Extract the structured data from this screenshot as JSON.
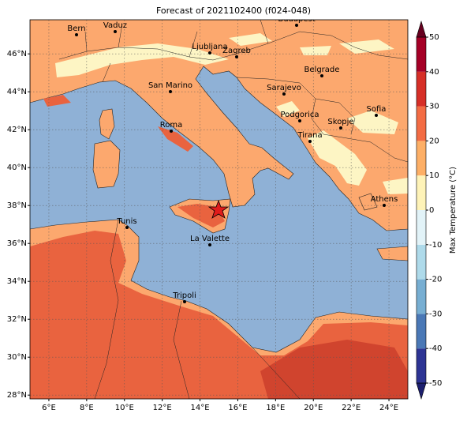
{
  "title": "Forecast of 2021102400 (f024-048)",
  "map": {
    "xlim": [
      5,
      25
    ],
    "ylim": [
      27.8,
      47.8
    ],
    "xticks": [
      {
        "value": 6,
        "label": "6°E"
      },
      {
        "value": 8,
        "label": "8°E"
      },
      {
        "value": 10,
        "label": "10°E"
      },
      {
        "value": 12,
        "label": "12°E"
      },
      {
        "value": 14,
        "label": "14°E"
      },
      {
        "value": 16,
        "label": "16°E"
      },
      {
        "value": 18,
        "label": "18°E"
      },
      {
        "value": 20,
        "label": "20°E"
      },
      {
        "value": 22,
        "label": "22°E"
      },
      {
        "value": 24,
        "label": "24°E"
      }
    ],
    "yticks": [
      {
        "value": 28,
        "label": "28°N"
      },
      {
        "value": 30,
        "label": "30°N"
      },
      {
        "value": 32,
        "label": "32°N"
      },
      {
        "value": 34,
        "label": "34°N"
      },
      {
        "value": 36,
        "label": "36°N"
      },
      {
        "value": 38,
        "label": "38°N"
      },
      {
        "value": 40,
        "label": "40°N"
      },
      {
        "value": 42,
        "label": "42°N"
      },
      {
        "value": 44,
        "label": "44°N"
      },
      {
        "value": 46,
        "label": "46°N"
      }
    ],
    "cities": [
      "Bern",
      "Vaduz",
      "Budapest",
      "Ljubljana",
      "Zagreb",
      "Belgrade",
      "San Marino",
      "Sarajevo",
      "Sofia",
      "Podgorica",
      "Skopje",
      "Roma",
      "Tirana",
      "Athens",
      "Tunis",
      "La Valette",
      "Tripoli"
    ]
  },
  "colorbar": {
    "label": "Max Temperature (°C)",
    "lim": [
      -50,
      50
    ],
    "ticks": [
      -50,
      -40,
      -30,
      -20,
      -10,
      0,
      10,
      20,
      30,
      40,
      50
    ],
    "colors": [
      "#2d3494",
      "#4a78b6",
      "#77aed2",
      "#aedaea",
      "#e2f3f8",
      "#fef3b8",
      "#fdaf66",
      "#f36c44",
      "#d62f27",
      "#a50026"
    ],
    "under_color": "#1c1f6e",
    "over_color": "#67001f"
  }
}
